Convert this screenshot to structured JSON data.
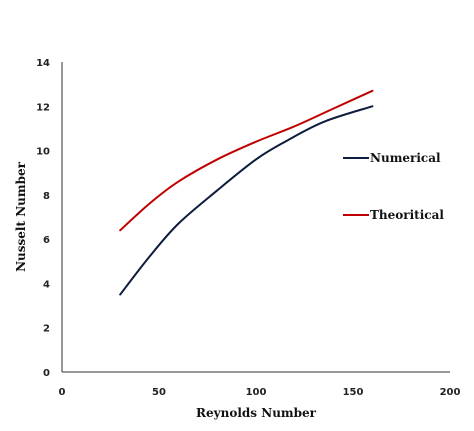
{
  "chart_data": {
    "type": "line",
    "xlabel": "Reynolds Number",
    "ylabel": "Nusselt Number",
    "xlim": [
      0,
      200
    ],
    "ylim": [
      0,
      14
    ],
    "xticks": [
      0,
      50,
      100,
      150,
      200
    ],
    "yticks": [
      0,
      2,
      4,
      6,
      8,
      10,
      12,
      14
    ],
    "grid": false,
    "legend_position": "right",
    "series": [
      {
        "name": "Numerical",
        "color": "#0d1b3e",
        "x": [
          30,
          45,
          60,
          80,
          100,
          115,
          135,
          160
        ],
        "y": [
          3.5,
          5.2,
          6.7,
          8.2,
          9.6,
          10.4,
          11.3,
          12.0
        ]
      },
      {
        "name": "Theoritical",
        "color": "#c00000",
        "x": [
          30,
          45,
          60,
          80,
          100,
          120,
          140,
          160
        ],
        "y": [
          6.4,
          7.6,
          8.6,
          9.6,
          10.4,
          11.1,
          11.9,
          12.7
        ]
      }
    ]
  }
}
